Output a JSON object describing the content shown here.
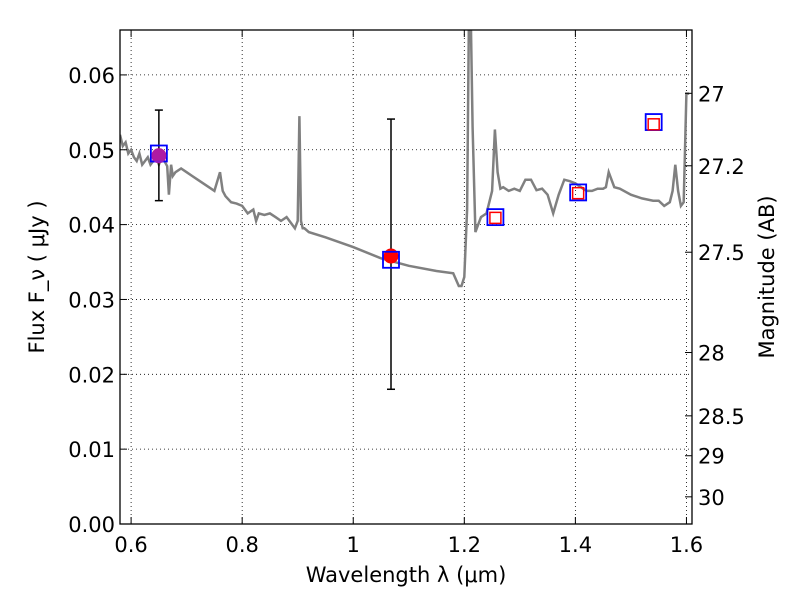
{
  "chart_data": {
    "type": "scatter",
    "title": "",
    "xlabel": "Wavelength  λ (μm)",
    "ylabel": "Flux  F_ν  ( μJy )",
    "ylabel_right": "Magnitude (AB)",
    "xlim": [
      0.58,
      1.61
    ],
    "ylim": [
      0.0,
      0.066
    ],
    "grid": true,
    "xticks": [
      0.6,
      0.8,
      1.0,
      1.2,
      1.4,
      1.6
    ],
    "xtick_labels": [
      "0.6",
      "0.8",
      "1",
      "1.2",
      "1.4",
      "1.6"
    ],
    "yticks": [
      0.0,
      0.01,
      0.02,
      0.03,
      0.04,
      0.05,
      0.06
    ],
    "ytick_labels": [
      "0.00",
      "0.01",
      "0.02",
      "0.03",
      "0.04",
      "0.05",
      "0.06"
    ],
    "right_ticks": [
      {
        "label": "27",
        "flux": 0.05754
      },
      {
        "label": "27.2",
        "flux": 0.04786
      },
      {
        "label": "27.5",
        "flux": 0.03631
      },
      {
        "label": "28",
        "flux": 0.02291
      },
      {
        "label": "28.5",
        "flux": 0.01445
      },
      {
        "label": "29",
        "flux": 0.00912
      },
      {
        "label": "30",
        "flux": 0.00363
      }
    ],
    "template_color": "#808080",
    "template_spectrum": {
      "x": [
        0.58,
        0.585,
        0.59,
        0.595,
        0.6,
        0.605,
        0.61,
        0.615,
        0.62,
        0.625,
        0.63,
        0.635,
        0.64,
        0.645,
        0.65,
        0.655,
        0.66,
        0.665,
        0.668,
        0.672,
        0.675,
        0.68,
        0.69,
        0.7,
        0.71,
        0.72,
        0.73,
        0.74,
        0.75,
        0.76,
        0.765,
        0.77,
        0.78,
        0.79,
        0.8,
        0.81,
        0.82,
        0.825,
        0.83,
        0.84,
        0.85,
        0.86,
        0.87,
        0.88,
        0.89,
        0.895,
        0.9,
        0.903,
        0.906,
        0.909,
        0.912,
        0.92,
        0.95,
        1.0,
        1.05,
        1.1,
        1.15,
        1.18,
        1.19,
        1.195,
        1.2,
        1.205,
        1.208,
        1.212,
        1.215,
        1.22,
        1.23,
        1.24,
        1.25,
        1.255,
        1.26,
        1.265,
        1.27,
        1.28,
        1.29,
        1.3,
        1.31,
        1.32,
        1.33,
        1.34,
        1.35,
        1.36,
        1.37,
        1.38,
        1.39,
        1.4,
        1.41,
        1.42,
        1.43,
        1.44,
        1.45,
        1.455,
        1.46,
        1.47,
        1.48,
        1.5,
        1.52,
        1.54,
        1.55,
        1.56,
        1.57,
        1.575,
        1.58,
        1.585,
        1.59,
        1.595,
        1.6,
        1.605
      ],
      "y": [
        0.052,
        0.0505,
        0.051,
        0.0495,
        0.05,
        0.049,
        0.0485,
        0.0495,
        0.048,
        0.0485,
        0.049,
        0.048,
        0.0485,
        0.049,
        0.048,
        0.049,
        0.0485,
        0.0478,
        0.044,
        0.048,
        0.0465,
        0.047,
        0.0475,
        0.047,
        0.0465,
        0.046,
        0.0455,
        0.045,
        0.0445,
        0.047,
        0.0445,
        0.0438,
        0.043,
        0.0428,
        0.0425,
        0.0415,
        0.042,
        0.0405,
        0.0415,
        0.0413,
        0.0415,
        0.041,
        0.0405,
        0.041,
        0.04,
        0.0395,
        0.0405,
        0.0545,
        0.0405,
        0.0395,
        0.0395,
        0.039,
        0.0383,
        0.037,
        0.0355,
        0.0345,
        0.0338,
        0.0335,
        0.0318,
        0.0318,
        0.033,
        0.042,
        0.066,
        0.066,
        0.053,
        0.039,
        0.041,
        0.0415,
        0.0445,
        0.0527,
        0.047,
        0.0448,
        0.045,
        0.0445,
        0.0448,
        0.0445,
        0.046,
        0.046,
        0.0446,
        0.0448,
        0.044,
        0.0415,
        0.044,
        0.046,
        0.0458,
        0.0455,
        0.045,
        0.0445,
        0.0445,
        0.0448,
        0.0448,
        0.045,
        0.047,
        0.045,
        0.0448,
        0.044,
        0.0435,
        0.0432,
        0.0432,
        0.0425,
        0.043,
        0.0445,
        0.048,
        0.0445,
        0.0425,
        0.043,
        0.0575,
        0.0575
      ]
    },
    "observed": {
      "color": "#ff0000",
      "points": [
        {
          "x": 0.65,
          "y": 0.0492,
          "err_low": 0.0432,
          "err_high": 0.0553
        },
        {
          "x": 1.068,
          "y": 0.0358,
          "err_low": 0.018,
          "err_high": 0.0541
        }
      ]
    },
    "model_blue_squares": {
      "color": "#0000ff",
      "points": [
        {
          "x": 0.65,
          "y": 0.0495
        },
        {
          "x": 1.068,
          "y": 0.0353
        },
        {
          "x": 1.256,
          "y": 0.041
        },
        {
          "x": 1.405,
          "y": 0.0443
        },
        {
          "x": 1.541,
          "y": 0.0537
        }
      ]
    },
    "model_red_squares": {
      "color": "#ff0000",
      "points": [
        {
          "x": 1.256,
          "y": 0.0409
        },
        {
          "x": 1.405,
          "y": 0.0442
        },
        {
          "x": 1.541,
          "y": 0.0534
        }
      ]
    }
  }
}
